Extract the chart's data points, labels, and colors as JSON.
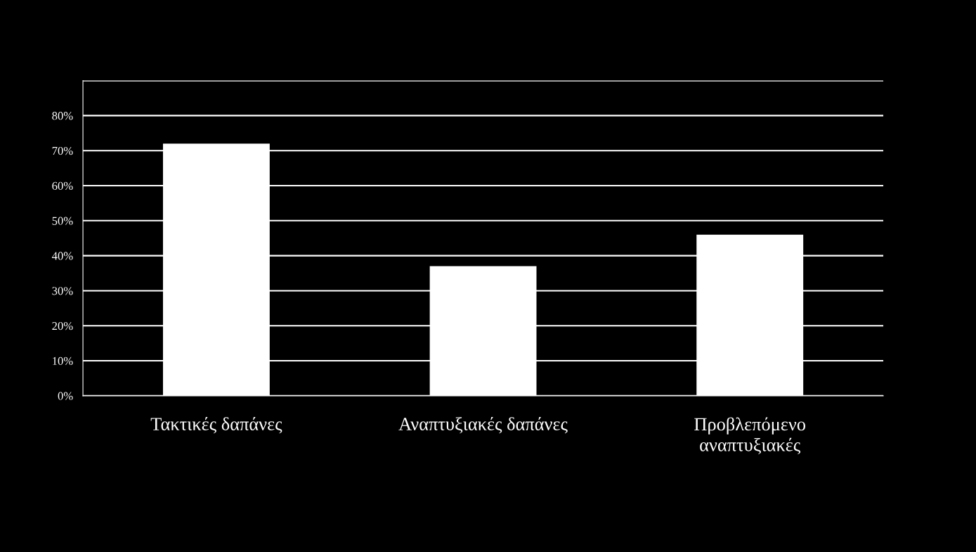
{
  "chart_data": {
    "type": "bar",
    "categories": [
      "Τακτικές δαπάνες",
      "Αναπτυξιακές δαπάνες",
      "Προβλεπόμενο\nαναπτυξιακές"
    ],
    "values": [
      72,
      37,
      46
    ],
    "color": "#ffffff",
    "ylim": [
      0,
      90
    ],
    "yticks": [
      {
        "value": 0,
        "label": "0%"
      },
      {
        "value": 10,
        "label": "10%"
      },
      {
        "value": 20,
        "label": "20%"
      },
      {
        "value": 30,
        "label": "30%"
      },
      {
        "value": 40,
        "label": "40%"
      },
      {
        "value": 50,
        "label": "50%"
      },
      {
        "value": 60,
        "label": "60%"
      },
      {
        "value": 70,
        "label": "70%"
      },
      {
        "value": 80,
        "label": "80%"
      },
      {
        "value": 90,
        "label": null
      }
    ],
    "grid": "y",
    "legend": false
  }
}
